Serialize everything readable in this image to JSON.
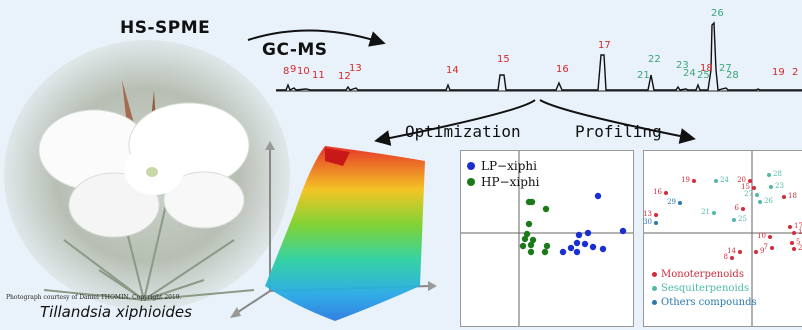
{
  "title_hs": "HS-SPME",
  "title_gc": "GC-MS",
  "optimization": "Optimization",
  "profiling": "Profiling",
  "credit": "Photograph courtesy of Daniel THOMIN. Copyright 2019.",
  "species": "Tillandsia xiphioides",
  "peaks": [
    {
      "label": "8",
      "color": "#d42a2a"
    },
    {
      "label": "9",
      "color": "#d42a2a"
    },
    {
      "label": "10",
      "color": "#d42a2a"
    },
    {
      "label": "11",
      "color": "#d42a2a"
    },
    {
      "label": "12",
      "color": "#d42a2a"
    },
    {
      "label": "13",
      "color": "#d42a2a"
    },
    {
      "label": "14",
      "color": "#d42a2a"
    },
    {
      "label": "15",
      "color": "#d42a2a"
    },
    {
      "label": "16",
      "color": "#d42a2a"
    },
    {
      "label": "17",
      "color": "#d42a2a"
    },
    {
      "label": "21",
      "color": "#3aa77a"
    },
    {
      "label": "22",
      "color": "#3aa77a"
    },
    {
      "label": "23",
      "color": "#3aa77a"
    },
    {
      "label": "24",
      "color": "#3aa77a"
    },
    {
      "label": "25",
      "color": "#3aa77a"
    },
    {
      "label": "18",
      "color": "#d42a2a"
    },
    {
      "label": "26",
      "color": "#3aa77a"
    },
    {
      "label": "27",
      "color": "#3aa77a"
    },
    {
      "label": "28",
      "color": "#3aa77a"
    },
    {
      "label": "19",
      "color": "#d42a2a"
    },
    {
      "label": "2",
      "color": "#d42a2a"
    }
  ],
  "pca1": {
    "legend": [
      {
        "label": "LP−xiphi",
        "color": "#1a2fd0"
      },
      {
        "label": "HP−xiphi",
        "color": "#1a7a1a"
      }
    ]
  },
  "pca2": {
    "legend": [
      {
        "label": "Monoterpenoids",
        "color": "#d42a3a"
      },
      {
        "label": "Sesquiterpenoids",
        "color": "#4fb8a6"
      },
      {
        "label": "Others compounds",
        "color": "#2a78b0"
      }
    ],
    "points": [
      {
        "label": "16",
        "color": "#d42a3a"
      },
      {
        "label": "19",
        "color": "#d42a3a"
      },
      {
        "label": "24",
        "color": "#4fb8a6"
      },
      {
        "label": "20",
        "color": "#d42a3a"
      },
      {
        "label": "28",
        "color": "#4fb8a6"
      },
      {
        "label": "15",
        "color": "#d42a3a"
      },
      {
        "label": "23",
        "color": "#4fb8a6"
      },
      {
        "label": "27",
        "color": "#4fb8a6"
      },
      {
        "label": "18",
        "color": "#d42a3a"
      },
      {
        "label": "26",
        "color": "#4fb8a6"
      },
      {
        "label": "29",
        "color": "#2a78b0"
      },
      {
        "label": "21",
        "color": "#4fb8a6"
      },
      {
        "label": "6",
        "color": "#d42a3a"
      },
      {
        "label": "25",
        "color": "#4fb8a6"
      },
      {
        "label": "13",
        "color": "#d42a3a"
      },
      {
        "label": "30",
        "color": "#2a78b0"
      },
      {
        "label": "17",
        "color": "#d42a3a"
      },
      {
        "label": "10",
        "color": "#d42a3a"
      },
      {
        "label": "11",
        "color": "#d42a3a"
      },
      {
        "label": "5",
        "color": "#d42a3a"
      },
      {
        "label": "7",
        "color": "#d42a3a"
      },
      {
        "label": "2",
        "color": "#d42a3a"
      },
      {
        "label": "14",
        "color": "#d42a3a"
      },
      {
        "label": "9",
        "color": "#d42a3a"
      },
      {
        "label": "8",
        "color": "#d42a3a"
      }
    ]
  }
}
